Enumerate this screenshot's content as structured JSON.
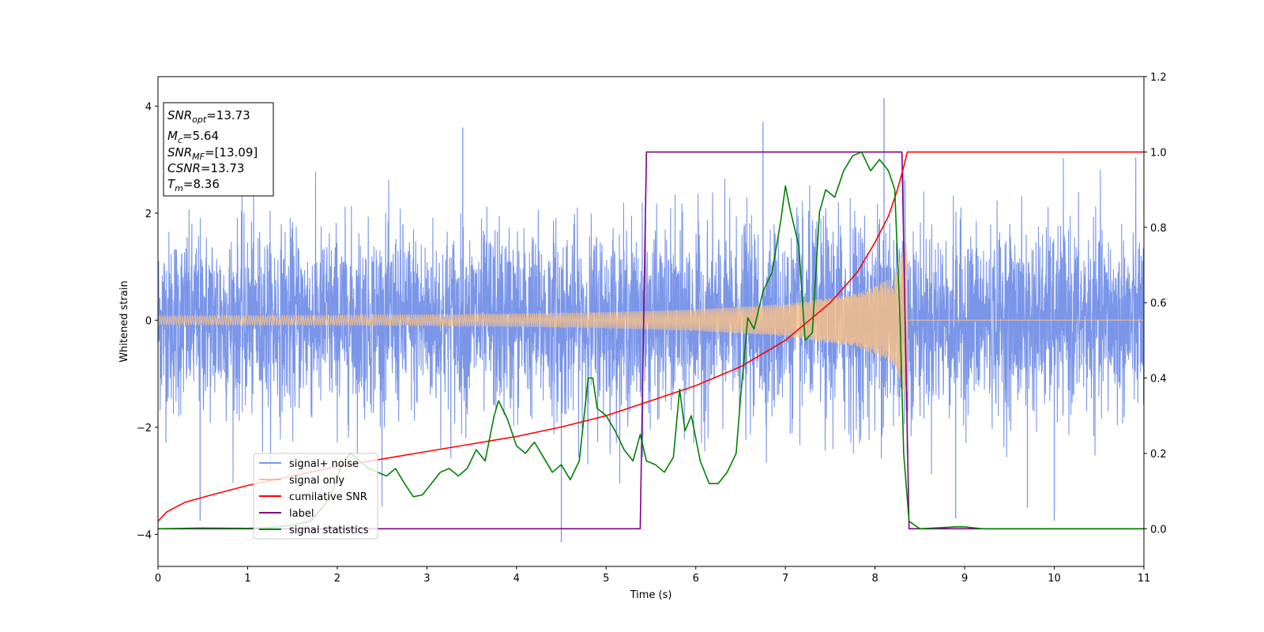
{
  "chart_data": {
    "type": "line",
    "xlabel": "Time (s)",
    "ylabel": "Whitened strain",
    "xlim": [
      0,
      11
    ],
    "ylim_left": [
      -4.6,
      4.55
    ],
    "ylim_right": [
      -0.1,
      1.2
    ],
    "x_ticks": [
      0,
      1,
      2,
      3,
      4,
      5,
      6,
      7,
      8,
      9,
      10,
      11
    ],
    "y_ticks_left": [
      -4,
      -2,
      0,
      2,
      4
    ],
    "y_ticks_right": [
      0.0,
      0.2,
      0.4,
      0.6,
      0.8,
      1.0,
      1.2
    ],
    "legend_position": "lower-left",
    "series": [
      {
        "name": "signal+ noise",
        "color": "#7b96e8",
        "axis": "left",
        "kind": "noise",
        "x_range": [
          0,
          11
        ],
        "typical_amplitude": 1.0,
        "max_value": 4.15,
        "min_value": -4.15
      },
      {
        "name": "signal only",
        "color": "#f5c08a",
        "axis": "left",
        "kind": "chirp",
        "merger_time": 8.36,
        "envelope": [
          [
            0,
            0.08
          ],
          [
            2,
            0.09
          ],
          [
            4,
            0.12
          ],
          [
            5,
            0.15
          ],
          [
            6,
            0.2
          ],
          [
            7,
            0.3
          ],
          [
            7.8,
            0.5
          ],
          [
            8.2,
            0.8
          ],
          [
            8.36,
            1.5
          ],
          [
            8.4,
            0.0
          ],
          [
            11,
            0.0
          ]
        ]
      },
      {
        "name": "cumilative SNR",
        "color": "#ff0000",
        "axis": "right",
        "points": [
          [
            0,
            0.02
          ],
          [
            0.1,
            0.045
          ],
          [
            0.3,
            0.07
          ],
          [
            0.6,
            0.09
          ],
          [
            1,
            0.115
          ],
          [
            1.5,
            0.14
          ],
          [
            2,
            0.165
          ],
          [
            2.5,
            0.185
          ],
          [
            3,
            0.205
          ],
          [
            3.5,
            0.225
          ],
          [
            4,
            0.245
          ],
          [
            4.5,
            0.27
          ],
          [
            5,
            0.3
          ],
          [
            5.5,
            0.34
          ],
          [
            6,
            0.38
          ],
          [
            6.5,
            0.43
          ],
          [
            7,
            0.5
          ],
          [
            7.5,
            0.6
          ],
          [
            7.8,
            0.68
          ],
          [
            8.0,
            0.76
          ],
          [
            8.15,
            0.83
          ],
          [
            8.25,
            0.9
          ],
          [
            8.32,
            0.96
          ],
          [
            8.36,
            1.0
          ],
          [
            11,
            1.0
          ]
        ]
      },
      {
        "name": "label",
        "color": "#800080",
        "axis": "right",
        "points": [
          [
            0,
            0
          ],
          [
            5.38,
            0
          ],
          [
            5.45,
            1
          ],
          [
            8.3,
            1
          ],
          [
            8.38,
            0
          ],
          [
            11,
            0
          ]
        ]
      },
      {
        "name": "signal statistics",
        "color": "#008000",
        "axis": "right",
        "points": [
          [
            0,
            0.0
          ],
          [
            0.5,
            0.002
          ],
          [
            1,
            0.001
          ],
          [
            1.3,
            0.004
          ],
          [
            1.5,
            0.01
          ],
          [
            1.7,
            0.02
          ],
          [
            1.85,
            0.06
          ],
          [
            1.95,
            0.1
          ],
          [
            2.05,
            0.17
          ],
          [
            2.15,
            0.2
          ],
          [
            2.25,
            0.18
          ],
          [
            2.35,
            0.16
          ],
          [
            2.45,
            0.15
          ],
          [
            2.55,
            0.14
          ],
          [
            2.65,
            0.16
          ],
          [
            2.75,
            0.12
          ],
          [
            2.85,
            0.085
          ],
          [
            2.95,
            0.09
          ],
          [
            3.05,
            0.12
          ],
          [
            3.15,
            0.15
          ],
          [
            3.25,
            0.16
          ],
          [
            3.35,
            0.14
          ],
          [
            3.45,
            0.16
          ],
          [
            3.55,
            0.21
          ],
          [
            3.65,
            0.18
          ],
          [
            3.75,
            0.3
          ],
          [
            3.8,
            0.34
          ],
          [
            3.9,
            0.29
          ],
          [
            4.0,
            0.22
          ],
          [
            4.1,
            0.2
          ],
          [
            4.2,
            0.23
          ],
          [
            4.3,
            0.19
          ],
          [
            4.4,
            0.15
          ],
          [
            4.5,
            0.17
          ],
          [
            4.6,
            0.13
          ],
          [
            4.7,
            0.18
          ],
          [
            4.8,
            0.4
          ],
          [
            4.85,
            0.4
          ],
          [
            4.9,
            0.32
          ],
          [
            5.0,
            0.3
          ],
          [
            5.1,
            0.26
          ],
          [
            5.2,
            0.21
          ],
          [
            5.3,
            0.18
          ],
          [
            5.38,
            0.25
          ],
          [
            5.45,
            0.18
          ],
          [
            5.55,
            0.17
          ],
          [
            5.65,
            0.15
          ],
          [
            5.75,
            0.19
          ],
          [
            5.82,
            0.37
          ],
          [
            5.88,
            0.26
          ],
          [
            5.95,
            0.3
          ],
          [
            6.05,
            0.18
          ],
          [
            6.15,
            0.12
          ],
          [
            6.25,
            0.12
          ],
          [
            6.35,
            0.15
          ],
          [
            6.45,
            0.2
          ],
          [
            6.5,
            0.35
          ],
          [
            6.58,
            0.56
          ],
          [
            6.65,
            0.53
          ],
          [
            6.75,
            0.63
          ],
          [
            6.85,
            0.68
          ],
          [
            6.95,
            0.82
          ],
          [
            7.0,
            0.91
          ],
          [
            7.05,
            0.85
          ],
          [
            7.15,
            0.75
          ],
          [
            7.22,
            0.5
          ],
          [
            7.3,
            0.52
          ],
          [
            7.38,
            0.84
          ],
          [
            7.45,
            0.9
          ],
          [
            7.55,
            0.88
          ],
          [
            7.65,
            0.95
          ],
          [
            7.75,
            0.99
          ],
          [
            7.85,
            1.0
          ],
          [
            7.95,
            0.95
          ],
          [
            8.05,
            0.98
          ],
          [
            8.15,
            0.95
          ],
          [
            8.22,
            0.9
          ],
          [
            8.28,
            0.55
          ],
          [
            8.32,
            0.2
          ],
          [
            8.38,
            0.02
          ],
          [
            8.5,
            0.0
          ],
          [
            8.9,
            0.005
          ],
          [
            9.0,
            0.005
          ],
          [
            9.2,
            0.0
          ],
          [
            11,
            0.0
          ]
        ]
      }
    ],
    "annotations": [
      {
        "name": "SNR",
        "sub": "opt",
        "value": "=13.73"
      },
      {
        "name": "M",
        "sub": "c",
        "value": "=5.64"
      },
      {
        "name": "SNR",
        "sub": "MF",
        "value": "=[13.09]"
      },
      {
        "name": "CSNR",
        "sub": "",
        "value": "=13.73"
      },
      {
        "name": "T",
        "sub": "m",
        "value": "=8.36"
      }
    ]
  }
}
